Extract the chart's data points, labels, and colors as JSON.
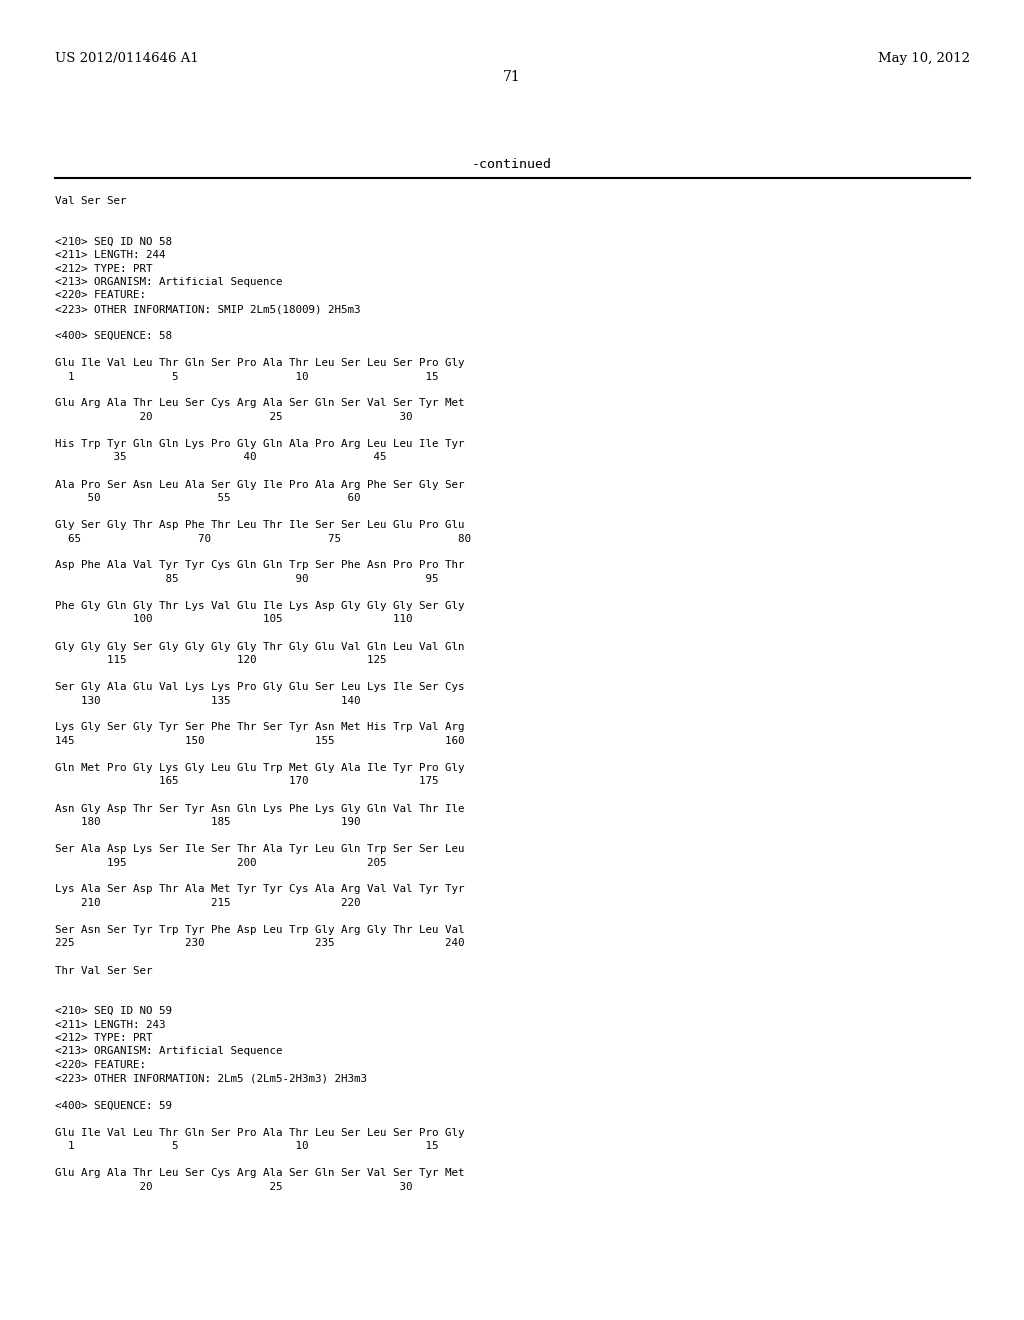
{
  "bg_color": "#ffffff",
  "header_left": "US 2012/0114646 A1",
  "header_right": "May 10, 2012",
  "page_number": "71",
  "continued_text": "-continued",
  "header_fontsize": 9.5,
  "page_num_fontsize": 10,
  "continued_fontsize": 9.5,
  "body_fontsize": 7.8,
  "body_lines": [
    "Val Ser Ser",
    "",
    "",
    "<210> SEQ ID NO 58",
    "<211> LENGTH: 244",
    "<212> TYPE: PRT",
    "<213> ORGANISM: Artificial Sequence",
    "<220> FEATURE:",
    "<223> OTHER INFORMATION: SMIP 2Lm5(18009) 2H5m3",
    "",
    "<400> SEQUENCE: 58",
    "",
    "Glu Ile Val Leu Thr Gln Ser Pro Ala Thr Leu Ser Leu Ser Pro Gly",
    "  1               5                  10                  15",
    "",
    "Glu Arg Ala Thr Leu Ser Cys Arg Ala Ser Gln Ser Val Ser Tyr Met",
    "             20                  25                  30",
    "",
    "His Trp Tyr Gln Gln Lys Pro Gly Gln Ala Pro Arg Leu Leu Ile Tyr",
    "         35                  40                  45",
    "",
    "Ala Pro Ser Asn Leu Ala Ser Gly Ile Pro Ala Arg Phe Ser Gly Ser",
    "     50                  55                  60",
    "",
    "Gly Ser Gly Thr Asp Phe Thr Leu Thr Ile Ser Ser Leu Glu Pro Glu",
    "  65                  70                  75                  80",
    "",
    "Asp Phe Ala Val Tyr Tyr Cys Gln Gln Trp Ser Phe Asn Pro Pro Thr",
    "                 85                  90                  95",
    "",
    "Phe Gly Gln Gly Thr Lys Val Glu Ile Lys Asp Gly Gly Gly Ser Gly",
    "            100                 105                 110",
    "",
    "Gly Gly Gly Ser Gly Gly Gly Gly Thr Gly Glu Val Gln Leu Val Gln",
    "        115                 120                 125",
    "",
    "Ser Gly Ala Glu Val Lys Lys Pro Gly Glu Ser Leu Lys Ile Ser Cys",
    "    130                 135                 140",
    "",
    "Lys Gly Ser Gly Tyr Ser Phe Thr Ser Tyr Asn Met His Trp Val Arg",
    "145                 150                 155                 160",
    "",
    "Gln Met Pro Gly Lys Gly Leu Glu Trp Met Gly Ala Ile Tyr Pro Gly",
    "                165                 170                 175",
    "",
    "Asn Gly Asp Thr Ser Tyr Asn Gln Lys Phe Lys Gly Gln Val Thr Ile",
    "    180                 185                 190",
    "",
    "Ser Ala Asp Lys Ser Ile Ser Thr Ala Tyr Leu Gln Trp Ser Ser Leu",
    "        195                 200                 205",
    "",
    "Lys Ala Ser Asp Thr Ala Met Tyr Tyr Cys Ala Arg Val Val Tyr Tyr",
    "    210                 215                 220",
    "",
    "Ser Asn Ser Tyr Trp Tyr Phe Asp Leu Trp Gly Arg Gly Thr Leu Val",
    "225                 230                 235                 240",
    "",
    "Thr Val Ser Ser",
    "",
    "",
    "<210> SEQ ID NO 59",
    "<211> LENGTH: 243",
    "<212> TYPE: PRT",
    "<213> ORGANISM: Artificial Sequence",
    "<220> FEATURE:",
    "<223> OTHER INFORMATION: 2Lm5 (2Lm5-2H3m3) 2H3m3",
    "",
    "<400> SEQUENCE: 59",
    "",
    "Glu Ile Val Leu Thr Gln Ser Pro Ala Thr Leu Ser Leu Ser Pro Gly",
    "  1               5                  10                  15",
    "",
    "Glu Arg Ala Thr Leu Ser Cys Arg Ala Ser Gln Ser Val Ser Tyr Met",
    "             20                  25                  30"
  ]
}
